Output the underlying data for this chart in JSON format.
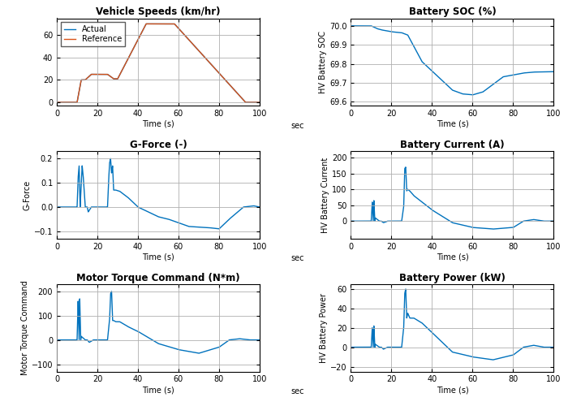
{
  "title_speed": "Vehicle Speeds (km/hr)",
  "title_soc": "Battery SOC (%)",
  "title_gforce": "G-Force (-)",
  "title_current": "Battery Current (A)",
  "title_torque": "Motor Torque Command (N*m)",
  "title_power": "Battery Power (kW)",
  "xlabel": "Time (s)",
  "ylabel_soc": "HV Battery SOC",
  "ylabel_gforce": "G-Force",
  "ylabel_current": "HV Battery Current",
  "ylabel_torque": "Motor Torque Command",
  "ylabel_power": "HV Battery Power",
  "line_color": "#0072BD",
  "ref_color": "#D95319",
  "background": "#ffffff",
  "grid_color": "#b0b0b0"
}
